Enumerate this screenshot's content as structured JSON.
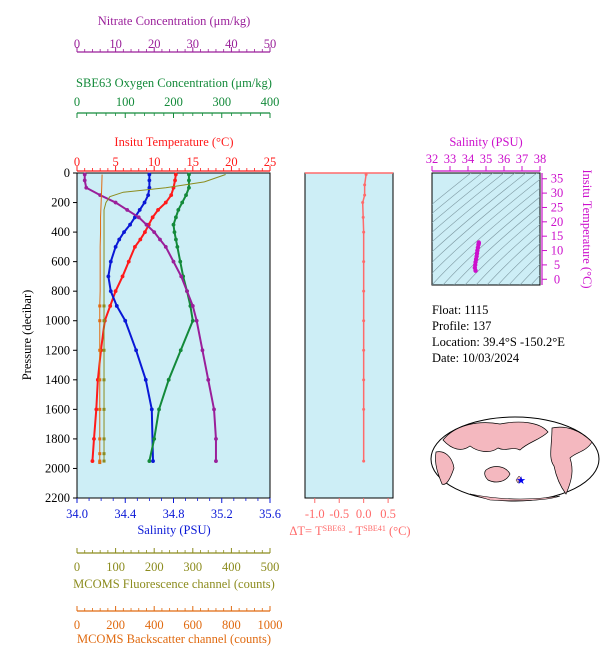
{
  "colors": {
    "nitrate": "#9a1f9a",
    "oxygen": "#138a3a",
    "temperature": "#ff1a1a",
    "salinity": "#0a18d6",
    "fluorescence": "#8c8c1e",
    "backscatter": "#e06a10",
    "delta": "#ff6a6a",
    "tsaxis": "#cc10cc",
    "plot_bg": "#cdeef6"
  },
  "info": {
    "float": "Float:  1115",
    "profile": "Profile:  137",
    "location": "Location:  39.4°S  -150.2°E",
    "date": "Date:  10/03/2024"
  },
  "chart_data": [
    {
      "type": "line",
      "name": "main-profile",
      "ylabel": "Pressure (decibar)",
      "ylim": [
        2200,
        0
      ],
      "yticks": [
        "0",
        "200",
        "400",
        "600",
        "800",
        "1000",
        "1200",
        "1400",
        "1600",
        "1800",
        "2000",
        "2200"
      ],
      "grid": false,
      "axes": {
        "nitrate": {
          "label": "Nitrate Concentration (μm/kg)",
          "ticks": [
            "0",
            "10",
            "20",
            "30",
            "40",
            "50"
          ],
          "range": [
            0,
            50
          ]
        },
        "oxygen": {
          "label": "SBE63 Oxygen Concentration (μm/kg)",
          "ticks": [
            "0",
            "100",
            "200",
            "300",
            "400"
          ],
          "range": [
            0,
            400
          ]
        },
        "temperature": {
          "label": "Insitu Temperature (°C)",
          "ticks": [
            "0",
            "5",
            "10",
            "15",
            "20",
            "25"
          ],
          "range": [
            0,
            25
          ]
        },
        "salinity": {
          "label": "Salinity (PSU)",
          "ticks": [
            "34.0",
            "34.4",
            "34.8",
            "35.2",
            "35.6"
          ],
          "range": [
            34.0,
            35.6
          ]
        },
        "fluorescence": {
          "label": "MCOMS Fluorescence channel (counts)",
          "ticks": [
            "0",
            "100",
            "200",
            "300",
            "400",
            "500"
          ],
          "range": [
            0,
            500
          ]
        },
        "backscatter": {
          "label": "MCOMS Backscatter channel (counts)",
          "ticks": [
            "0",
            "200",
            "400",
            "600",
            "800",
            "1000"
          ],
          "range": [
            0,
            1000
          ]
        }
      },
      "series": [
        {
          "key": "temperature",
          "x": [
            12.8,
            12.7,
            12.5,
            12.2,
            11.5,
            10.5,
            9.8,
            9.3,
            8.8,
            8.2,
            7.5,
            6.7,
            5.9,
            5.0,
            4.3,
            3.6,
            3.1,
            2.7,
            2.5,
            2.2,
            2.0
          ],
          "y": [
            10,
            50,
            100,
            150,
            200,
            250,
            300,
            350,
            400,
            450,
            500,
            600,
            700,
            800,
            900,
            1000,
            1200,
            1400,
            1600,
            1800,
            1950
          ]
        },
        {
          "key": "salinity",
          "x": [
            34.6,
            34.6,
            34.6,
            34.59,
            34.56,
            34.52,
            34.48,
            34.44,
            34.39,
            34.35,
            34.32,
            34.28,
            34.26,
            34.28,
            34.33,
            34.4,
            34.49,
            34.57,
            34.62,
            34.63
          ],
          "y": [
            10,
            50,
            100,
            150,
            200,
            250,
            300,
            350,
            400,
            450,
            500,
            600,
            700,
            800,
            900,
            1000,
            1200,
            1400,
            1600,
            1950
          ]
        },
        {
          "key": "oxygen",
          "x": [
            232,
            232,
            232,
            226,
            218,
            210,
            205,
            200,
            202,
            205,
            208,
            214,
            220,
            228,
            235,
            240,
            215,
            190,
            170,
            160,
            150
          ],
          "y": [
            10,
            50,
            100,
            150,
            200,
            250,
            300,
            350,
            400,
            450,
            500,
            600,
            700,
            800,
            900,
            1000,
            1200,
            1400,
            1600,
            1800,
            1950
          ]
        },
        {
          "key": "nitrate",
          "x": [
            2.0,
            2.0,
            2.4,
            6,
            10,
            13,
            16,
            18,
            20,
            21.5,
            23,
            25,
            27,
            28.5,
            30,
            31,
            32.5,
            34,
            35.5,
            36,
            36
          ],
          "y": [
            10,
            50,
            100,
            150,
            200,
            250,
            300,
            350,
            400,
            450,
            500,
            600,
            700,
            800,
            900,
            1000,
            1200,
            1400,
            1600,
            1800,
            1950
          ]
        },
        {
          "key": "fluorescence",
          "x": [
            385,
            330,
            230,
            120,
            85,
            75,
            70,
            70,
            70,
            70,
            70,
            70,
            70,
            70,
            70,
            70,
            70,
            70,
            70,
            70,
            70
          ],
          "y": [
            10,
            60,
            100,
            130,
            160,
            200,
            250,
            300,
            400,
            500,
            600,
            700,
            800,
            900,
            1000,
            1200,
            1400,
            1600,
            1800,
            1900,
            1950
          ]
        },
        {
          "key": "backscatter",
          "x": [
            130,
            128,
            125,
            122,
            122,
            120,
            120,
            120,
            120,
            118,
            118,
            118,
            118,
            118,
            118,
            118,
            118,
            118
          ],
          "y": [
            10,
            100,
            200,
            300,
            400,
            500,
            600,
            700,
            800,
            900,
            1000,
            1200,
            1400,
            1600,
            1800,
            1900,
            1950,
            1960
          ]
        }
      ]
    },
    {
      "type": "line",
      "name": "delta-t",
      "xlabel": "ΔT= TSBE63 - TSBE41 (°C)",
      "xticks": [
        "-1.0",
        "-0.5",
        "0.0",
        "0.5"
      ],
      "xlim": [
        -1.2,
        0.6
      ],
      "ylim": [
        2200,
        0
      ],
      "series": [
        {
          "key": "delta",
          "x": [
            0.05,
            0.02,
            0.02,
            -0.02,
            -0.01,
            0.0,
            0.0,
            0.0,
            0.0,
            0.0,
            0.0,
            0.0,
            0.0
          ],
          "y": [
            10,
            80,
            150,
            200,
            300,
            400,
            600,
            800,
            1000,
            1200,
            1400,
            1600,
            1950
          ]
        }
      ]
    },
    {
      "type": "scatter",
      "name": "ts-diagram",
      "title": "Salinity (PSU)",
      "xticks": [
        "32",
        "33",
        "34",
        "35",
        "36",
        "37",
        "38"
      ],
      "xlim": [
        32,
        38
      ],
      "ylabel": "Insitu Temperature (°C)",
      "yticks": [
        "0",
        "5",
        "10",
        "15",
        "20",
        "25",
        "30",
        "35"
      ],
      "ylim": [
        -2,
        37
      ],
      "series": [
        {
          "key": "ts",
          "x": [
            34.6,
            34.6,
            34.58,
            34.55,
            34.52,
            34.5,
            34.48,
            34.45,
            34.42,
            34.4,
            34.38,
            34.42
          ],
          "y": [
            12.8,
            12.5,
            12,
            11,
            10,
            9,
            8,
            7,
            6,
            5,
            4,
            3
          ]
        }
      ]
    }
  ]
}
